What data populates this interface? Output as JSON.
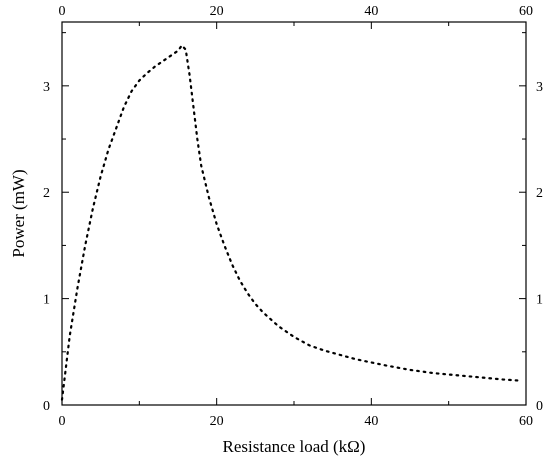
{
  "chart_data": {
    "type": "line",
    "title": "",
    "xlabel": "Resistance load (kΩ)",
    "ylabel": "Power (mW)",
    "xlim": [
      0,
      60
    ],
    "ylim": [
      0,
      3.6
    ],
    "x_ticks": [
      "0",
      "20",
      "40",
      "60"
    ],
    "y_ticks": [
      "0",
      "1",
      "2",
      "3"
    ],
    "top_axis_ticks": [
      "0",
      "20",
      "40",
      "60"
    ],
    "right_axis_ticks": [
      "0",
      "1",
      "2",
      "3"
    ],
    "grid": false,
    "legend": "none",
    "line_style": "dotted",
    "line_color": "#000000",
    "series": [
      {
        "x": [
          0,
          0.5,
          1,
          2,
          3,
          4,
          5,
          6,
          7,
          8,
          9,
          10,
          11,
          12,
          13,
          14,
          15,
          15.5,
          16,
          16.5,
          17,
          17.5,
          18,
          19,
          20,
          21,
          22,
          23,
          24,
          25,
          26,
          28,
          30,
          32,
          34,
          36,
          38,
          40,
          42,
          45,
          48,
          51,
          54,
          57,
          59
        ],
        "y": [
          0.05,
          0.35,
          0.65,
          1.1,
          1.5,
          1.85,
          2.15,
          2.4,
          2.6,
          2.8,
          2.95,
          3.05,
          3.12,
          3.18,
          3.23,
          3.28,
          3.33,
          3.38,
          3.34,
          3.1,
          2.8,
          2.5,
          2.25,
          1.95,
          1.7,
          1.5,
          1.32,
          1.17,
          1.05,
          0.95,
          0.87,
          0.74,
          0.64,
          0.56,
          0.51,
          0.47,
          0.43,
          0.4,
          0.37,
          0.33,
          0.3,
          0.28,
          0.26,
          0.24,
          0.23
        ]
      }
    ]
  }
}
